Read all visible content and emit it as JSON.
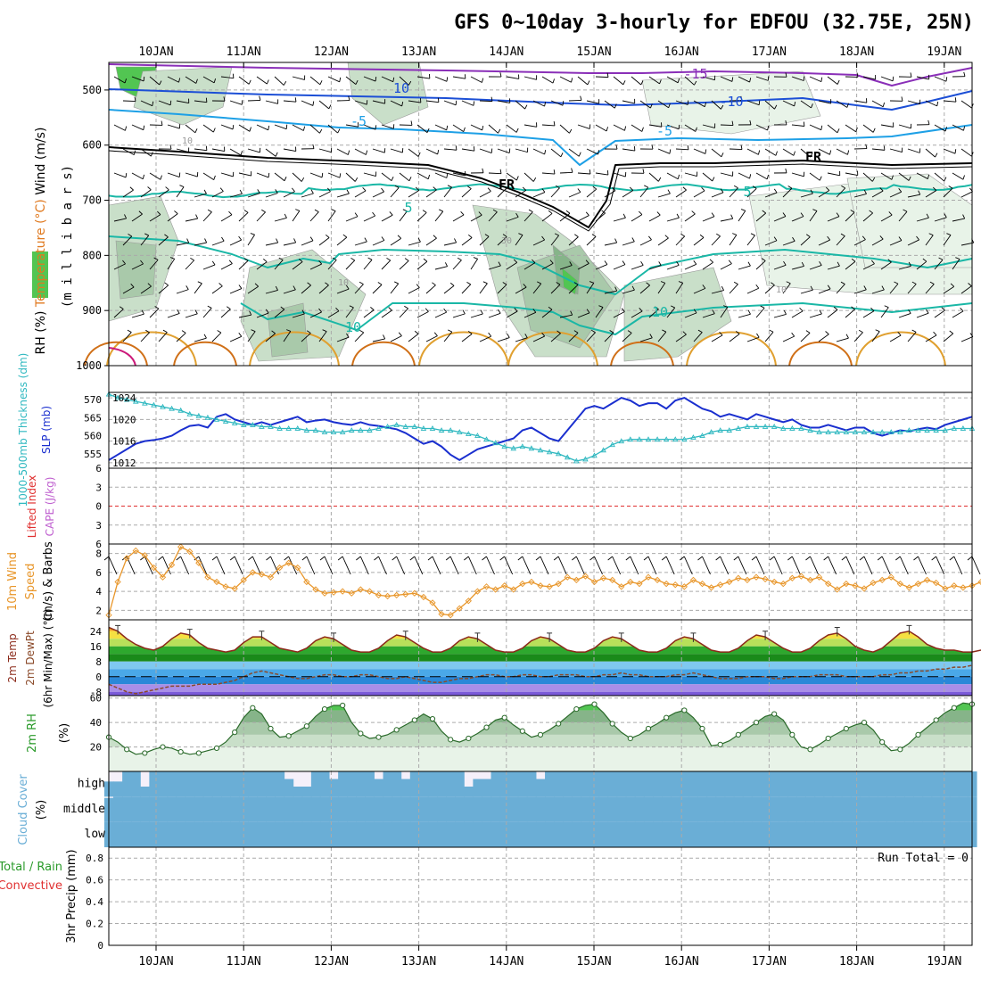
{
  "title": "GFS 0~10day 3-hourly for EDFOU (32.75E, 25N)",
  "date_labels": [
    "10JAN",
    "11JAN",
    "12JAN",
    "13JAN",
    "14JAN",
    "15JAN",
    "16JAN",
    "17JAN",
    "18JAN",
    "19JAN"
  ],
  "colors": {
    "frame": "#000000",
    "grid": "#aaaaaa",
    "rh_shade": [
      "#e8f3e8",
      "#c9dfc9",
      "#a9c9aa",
      "#86b489",
      "#52c552"
    ],
    "temp_purple": "#8a2fb8",
    "temp_blue": "#1c4fd6",
    "temp_lightblue": "#1ea0e6",
    "temp_teal": "#1ab7a6",
    "temp_orange": "#e0a030",
    "temp_darkorange": "#d07018",
    "slp": "#1a2fcf",
    "thickness": "#2fb8c0",
    "lifted_index": "#e03030",
    "cape": "#bf5fcf",
    "wind10m": "#e8962a",
    "dewpoint": "#8b4a2a",
    "rh2m": "#2a9a2a",
    "cloud": "#6aaed6",
    "cloud_bg": "#f5f0fa",
    "precip_total": "#2a9a2a",
    "precip_conv": "#e03030"
  },
  "panels": {
    "upper": {
      "ylabel_parts": [
        "RH (%)",
        "Temperature (°C)",
        "Wind (m/s)"
      ],
      "ylabel_units": "(m i l l i b a r s)",
      "ticks": [
        "500",
        "600",
        "700",
        "800",
        "900",
        "1000"
      ],
      "contour_labels": [
        "10",
        "-15",
        "-10",
        "-5",
        "-5",
        "5",
        "5",
        "10",
        "10",
        "FR",
        "FR",
        "10",
        "10",
        "10",
        "30"
      ]
    },
    "slp": {
      "ylabel_left": "1000-500mb Thickness (dm)",
      "ylabel_right": "SLP (mb)",
      "left_ticks": [
        "570",
        "565",
        "560",
        "555"
      ],
      "right_ticks": [
        "1024",
        "1020",
        "1016",
        "1012"
      ]
    },
    "cape": {
      "ylabel_left": "Lifted Index",
      "ylabel_right": "CAPE (J/kg)",
      "ticks": [
        "6",
        "3",
        "0",
        "-3",
        "-6"
      ]
    },
    "wind": {
      "ylabel_parts": [
        "10m Wind",
        "Speed",
        "(m/s) & Barbs"
      ],
      "ticks": [
        "8",
        "6",
        "4",
        "2"
      ]
    },
    "temp": {
      "ylabel_parts": [
        "2m Temp",
        "2m DewPt",
        "(6hr Min/Max) (°C)"
      ],
      "ticks": [
        "24",
        "16",
        "8",
        "0",
        "-8"
      ]
    },
    "rh": {
      "ylabel_parts": [
        "2m RH",
        "(%)"
      ],
      "ticks": [
        "60",
        "40",
        "20"
      ]
    },
    "cloud": {
      "ylabel_parts": [
        "Cloud Cover",
        "(%)"
      ],
      "level_labels": [
        "high",
        "middle",
        "low"
      ]
    },
    "precip": {
      "ylabel_parts": [
        "Total / Rain",
        "Convective",
        "3hr Precip (mm)"
      ],
      "ticks": [
        "0.8",
        "0.6",
        "0.4",
        "0.2",
        "0"
      ],
      "run_total": "Run Total = 0"
    }
  },
  "chart_data": [
    {
      "type": "line",
      "title": "SLP (mb)",
      "x_start": "09JAN 12Z",
      "x_step_hours": 3,
      "ylim": [
        1011,
        1025
      ],
      "values": [
        1012.5,
        1013.5,
        1014.5,
        1015.5,
        1016.0,
        1016.2,
        1016.5,
        1017.0,
        1018.0,
        1018.8,
        1019.0,
        1018.5,
        1020.5,
        1021.0,
        1020.0,
        1019.5,
        1019.0,
        1019.5,
        1019.0,
        1019.5,
        1020.0,
        1020.5,
        1019.5,
        1019.8,
        1020.0,
        1019.5,
        1019.2,
        1019.0,
        1019.5,
        1019.0,
        1018.8,
        1018.5,
        1018.2,
        1017.5,
        1016.5,
        1015.5,
        1016.0,
        1015.0,
        1013.5,
        1012.5,
        1013.5,
        1014.5,
        1015.0,
        1015.5,
        1016.0,
        1016.5,
        1018.0,
        1018.5,
        1017.5,
        1016.5,
        1016.0,
        1018.0,
        1020.0,
        1022.0,
        1022.5,
        1022.0,
        1023.0,
        1024.0,
        1023.5,
        1022.5,
        1023.0,
        1023.0,
        1022.0,
        1023.5,
        1024.0,
        1023.0,
        1022.0,
        1021.5,
        1020.5,
        1021.0,
        1020.5,
        1020.0,
        1021.0,
        1020.5,
        1020.0,
        1019.5,
        1020.0,
        1019.0,
        1018.5,
        1018.5,
        1019.0,
        1018.5,
        1018.0,
        1018.5,
        1018.5,
        1017.5,
        1017.0,
        1017.5,
        1018.0,
        1017.8,
        1018.2,
        1018.5,
        1018.2,
        1019.0,
        1019.5,
        1020.0,
        1020.5
      ]
    },
    {
      "type": "line",
      "title": "1000-500mb Thickness (dm)",
      "x_start": "09JAN 12Z",
      "x_step_hours": 3,
      "ylim": [
        551,
        572
      ],
      "values": [
        571.5,
        570.5,
        570.0,
        569.5,
        569.0,
        568.5,
        568.0,
        567.5,
        567.0,
        566.0,
        565.5,
        565.0,
        564.5,
        564.0,
        563.5,
        563.0,
        563.0,
        562.5,
        562.5,
        562.0,
        562.0,
        562.0,
        561.5,
        561.5,
        561.0,
        561.0,
        561.0,
        561.5,
        561.5,
        561.5,
        562.0,
        562.5,
        563.0,
        562.5,
        562.5,
        562.0,
        562.0,
        561.5,
        561.5,
        561.0,
        560.5,
        560.0,
        559.0,
        558.0,
        557.0,
        556.5,
        557.0,
        556.5,
        556.0,
        555.5,
        555.0,
        554.0,
        553.0,
        553.5,
        554.5,
        556.0,
        557.5,
        558.5,
        559.0,
        559.0,
        559.0,
        559.0,
        559.0,
        559.0,
        559.0,
        559.5,
        560.0,
        561.0,
        561.5,
        561.5,
        562.0,
        562.5,
        562.5,
        562.5,
        562.5,
        562.0,
        562.0,
        562.0,
        561.5,
        561.0,
        561.0,
        561.0,
        561.0,
        561.0,
        561.0,
        561.0,
        561.0,
        561.0,
        561.0,
        561.5,
        561.5,
        561.5,
        561.5,
        561.5,
        562.0,
        562.0,
        562.0
      ]
    },
    {
      "type": "line",
      "title": "10m Wind Speed (m/s)",
      "x_start": "09JAN 12Z",
      "x_step_hours": 3,
      "ylim": [
        1,
        9
      ],
      "values": [
        1.5,
        5.0,
        7.5,
        8.3,
        7.8,
        6.5,
        5.5,
        6.8,
        8.7,
        8.2,
        7.0,
        5.5,
        5.0,
        4.5,
        4.3,
        5.2,
        6.0,
        5.8,
        5.5,
        6.5,
        7.0,
        6.5,
        5.0,
        4.2,
        3.8,
        3.9,
        4.0,
        3.8,
        4.2,
        4.0,
        3.6,
        3.5,
        3.6,
        3.7,
        3.8,
        3.4,
        2.8,
        1.6,
        1.5,
        2.2,
        3.0,
        4.0,
        4.5,
        4.2,
        4.6,
        4.2,
        4.8,
        5.0,
        4.6,
        4.5,
        4.8,
        5.5,
        5.2,
        5.6,
        5.0,
        5.4,
        5.2,
        4.5,
        5.0,
        4.8,
        5.5,
        5.2,
        4.8,
        4.7,
        4.5,
        5.2,
        4.8,
        4.4,
        4.7,
        5.0,
        5.4,
        5.2,
        5.5,
        5.3,
        5.0,
        4.8,
        5.4,
        5.6,
        5.2,
        5.5,
        4.8,
        4.2,
        4.8,
        4.6,
        4.3,
        4.9,
        5.2,
        5.5,
        4.8,
        4.4,
        4.8,
        5.2,
        4.9,
        4.3,
        4.6,
        4.4,
        4.6,
        5.0
      ]
    },
    {
      "type": "area",
      "title": "2m Temp (°C)",
      "x_start": "09JAN 12Z",
      "x_step_hours": 3,
      "ylim": [
        -10,
        30
      ],
      "values": [
        26,
        24,
        20,
        17,
        15,
        14,
        16,
        20,
        23,
        22,
        18,
        15,
        14,
        13,
        14,
        18,
        21,
        21,
        18,
        15,
        14,
        13,
        15,
        19,
        21,
        20,
        17,
        14,
        13,
        13,
        15,
        19,
        22,
        21,
        18,
        15,
        13,
        13,
        15,
        19,
        21,
        20,
        17,
        14,
        13,
        13,
        15,
        19,
        21,
        20,
        17,
        14,
        13,
        13,
        15,
        19,
        21,
        20,
        17,
        14,
        13,
        13,
        15,
        19,
        21,
        20,
        17,
        14,
        13,
        13,
        15,
        19,
        22,
        21,
        18,
        15,
        13,
        13,
        15,
        19,
        22,
        23,
        20,
        16,
        14,
        13,
        15,
        19,
        23,
        24,
        21,
        17,
        15,
        14,
        14,
        13,
        13,
        14
      ]
    },
    {
      "type": "line",
      "title": "2m DewPt (°C)",
      "x_start": "09JAN 12Z",
      "x_step_hours": 3,
      "ylim": [
        -10,
        30
      ],
      "values": [
        -4,
        -6,
        -8,
        -9,
        -8,
        -7,
        -6,
        -5,
        -5,
        -5,
        -4,
        -4,
        -4,
        -3,
        -2,
        0,
        2,
        3,
        2,
        1,
        0,
        -1,
        -1,
        0,
        1,
        1,
        0,
        0,
        1,
        1,
        0,
        -1,
        -1,
        0,
        -1,
        -2,
        -3,
        -3,
        -2,
        -1,
        -1,
        0,
        1,
        1,
        0,
        0,
        1,
        1,
        0,
        0,
        1,
        1,
        1,
        0,
        0,
        1,
        1,
        2,
        1,
        1,
        0,
        0,
        0,
        1,
        1,
        2,
        1,
        0,
        -1,
        -1,
        -1,
        0,
        0,
        0,
        -1,
        -1,
        0,
        0,
        0,
        1,
        1,
        1,
        0,
        0,
        0,
        0,
        1,
        1,
        2,
        2,
        3,
        3,
        4,
        4,
        5,
        5,
        6
      ]
    },
    {
      "type": "area",
      "title": "2m RH (%)",
      "x_start": "09JAN 12Z",
      "x_step_hours": 3,
      "ylim": [
        0,
        62
      ],
      "values": [
        28,
        24,
        18,
        14,
        15,
        18,
        20,
        19,
        16,
        14,
        15,
        17,
        19,
        24,
        32,
        44,
        52,
        47,
        35,
        28,
        29,
        33,
        37,
        45,
        51,
        54,
        54,
        40,
        31,
        27,
        28,
        30,
        34,
        38,
        42,
        47,
        43,
        33,
        26,
        24,
        27,
        31,
        36,
        42,
        44,
        38,
        33,
        28,
        30,
        34,
        39,
        45,
        51,
        54,
        55,
        48,
        39,
        32,
        27,
        30,
        35,
        39,
        44,
        48,
        50,
        44,
        35,
        21,
        22,
        25,
        30,
        35,
        40,
        45,
        47,
        42,
        30,
        20,
        18,
        22,
        27,
        31,
        35,
        38,
        40,
        34,
        24,
        17,
        18,
        23,
        30,
        36,
        42,
        48,
        52,
        56,
        55
      ]
    },
    {
      "type": "bar",
      "title": "Cloud Cover (%)",
      "series": [
        {
          "name": "high",
          "values": [
            60,
            60,
            100,
            100,
            40,
            100,
            100,
            100,
            100,
            100,
            100,
            100,
            100,
            100,
            100,
            100,
            100,
            100,
            100,
            100,
            70,
            40,
            40,
            100,
            100,
            70,
            100,
            100,
            100,
            100,
            70,
            100,
            100,
            70,
            100,
            100,
            100,
            100,
            100,
            100,
            40,
            70,
            70,
            100,
            100,
            100,
            100,
            100,
            70,
            100,
            100,
            100,
            100,
            100,
            100,
            100,
            100,
            100,
            100,
            100,
            100,
            100,
            100,
            100,
            100,
            100,
            100,
            100,
            100,
            100,
            100,
            100,
            100,
            100,
            100,
            100,
            100,
            100,
            100,
            100,
            100,
            100,
            100,
            100,
            100,
            100,
            100,
            100,
            100,
            100,
            100,
            100,
            100,
            100,
            100,
            100,
            100
          ]
        },
        {
          "name": "middle",
          "values": [
            95,
            100,
            100,
            100,
            100,
            100,
            100,
            100,
            100,
            100,
            100,
            100,
            100,
            100,
            100,
            100,
            100,
            100,
            100,
            100,
            100,
            100,
            100,
            100,
            100,
            100,
            100,
            100,
            100,
            100,
            100,
            100,
            100,
            100,
            100,
            100,
            100,
            100,
            100,
            100,
            100,
            100,
            100,
            100,
            100,
            100,
            100,
            100,
            100,
            100,
            100,
            100,
            100,
            100,
            100,
            100,
            100,
            100,
            100,
            100,
            100,
            100,
            100,
            100,
            100,
            100,
            100,
            100,
            100,
            100,
            100,
            100,
            100,
            100,
            100,
            100,
            100,
            100,
            100,
            100,
            100,
            100,
            100,
            100,
            100,
            100,
            100,
            100,
            100,
            100,
            100,
            100,
            100,
            100,
            100,
            100,
            100
          ]
        },
        {
          "name": "low",
          "values": [
            100,
            100,
            100,
            100,
            100,
            100,
            100,
            100,
            100,
            100,
            100,
            100,
            100,
            100,
            100,
            100,
            100,
            100,
            100,
            100,
            100,
            100,
            100,
            100,
            100,
            100,
            100,
            100,
            100,
            100,
            100,
            100,
            100,
            100,
            100,
            100,
            100,
            100,
            100,
            100,
            100,
            100,
            100,
            100,
            100,
            100,
            100,
            100,
            100,
            100,
            100,
            100,
            100,
            100,
            100,
            100,
            100,
            100,
            100,
            100,
            100,
            100,
            100,
            100,
            100,
            100,
            100,
            100,
            100,
            100,
            100,
            100,
            100,
            100,
            100,
            100,
            100,
            100,
            100,
            100,
            100,
            100,
            100,
            100,
            100,
            100,
            100,
            100,
            100,
            100,
            100,
            100,
            100,
            100,
            100,
            100,
            100
          ]
        }
      ]
    },
    {
      "type": "bar",
      "title": "3hr Precip (mm)",
      "ylim": [
        0,
        0.9
      ],
      "values": [
        0,
        0,
        0,
        0,
        0,
        0,
        0,
        0,
        0,
        0,
        0,
        0,
        0,
        0,
        0,
        0,
        0,
        0,
        0,
        0,
        0,
        0,
        0,
        0,
        0,
        0,
        0,
        0,
        0,
        0,
        0,
        0,
        0,
        0,
        0,
        0,
        0,
        0,
        0,
        0,
        0,
        0,
        0,
        0,
        0,
        0,
        0,
        0,
        0,
        0,
        0,
        0,
        0,
        0,
        0,
        0,
        0,
        0,
        0,
        0,
        0,
        0,
        0,
        0,
        0,
        0,
        0,
        0,
        0,
        0,
        0,
        0,
        0,
        0,
        0,
        0,
        0,
        0,
        0,
        0,
        0,
        0,
        0,
        0,
        0,
        0,
        0,
        0,
        0,
        0,
        0,
        0,
        0,
        0,
        0,
        0,
        0
      ]
    }
  ]
}
